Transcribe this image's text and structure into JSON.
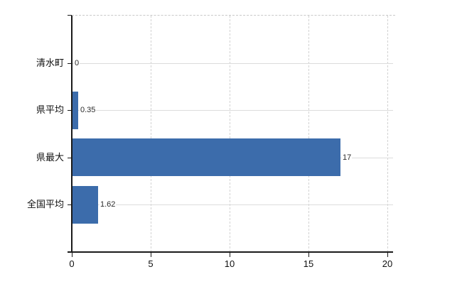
{
  "chart_data": {
    "type": "bar",
    "orientation": "horizontal",
    "title": "",
    "xlabel": "",
    "ylabel": "",
    "categories": [
      "清水町",
      "県平均",
      "県最大",
      "全国平均"
    ],
    "values": [
      0,
      0.35,
      17,
      1.62
    ],
    "value_labels": [
      "0",
      "0.35",
      "17",
      "1.62"
    ],
    "x_ticks": [
      0,
      5,
      10,
      15,
      20
    ],
    "x_tick_labels": [
      "0",
      "5",
      "10",
      "15",
      "20"
    ],
    "xlim": [
      0,
      20
    ],
    "grid": true,
    "legend": false,
    "bar_color": "#3c6cab",
    "axis_color": "#1a1a1a",
    "hgrid_color": "#dcdcdc",
    "vgrid_color": "#d2d2d2",
    "text_color": "#111111",
    "value_text_color": "#2b2b2b"
  }
}
